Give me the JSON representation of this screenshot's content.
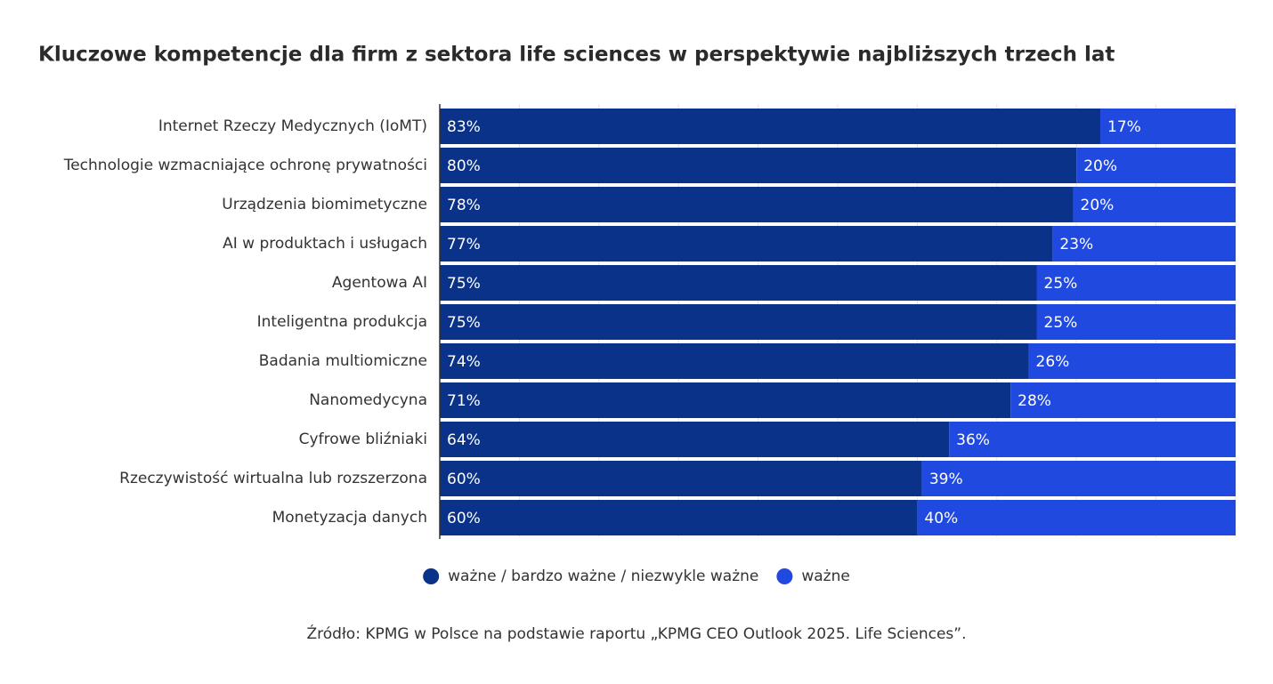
{
  "chart_data": {
    "type": "bar",
    "orientation": "horizontal",
    "stacking": "percent",
    "title": "Kluczowe kompetencje dla firm z sektora life sciences w perspektywie najbliższych trzech lat",
    "categories": [
      "Internet Rzeczy Medycznych (IoMT)",
      "Technologie wzmacniające ochronę prywatności",
      "Urządzenia biomimetyczne",
      "AI w produktach i usługach",
      "Agentowa AI",
      "Inteligentna produkcja",
      "Badania multiomiczne",
      "Nanomedycyna",
      "Cyfrowe bliźniaki",
      "Rzeczywistość wirtualna lub rozszerzona",
      "Monetyzacja danych"
    ],
    "series": [
      {
        "name": "ważne / bardzo ważne / niezwykle ważne",
        "color": "#0b3289",
        "values": [
          83,
          80,
          78,
          77,
          75,
          75,
          74,
          71,
          64,
          60,
          60
        ],
        "value_labels": [
          "83%",
          "80%",
          "78%",
          "77%",
          "75%",
          "75%",
          "74%",
          "71%",
          "64%",
          "60%",
          "60%"
        ]
      },
      {
        "name": "ważne",
        "color": "#2049e0",
        "values": [
          17,
          20,
          20,
          23,
          25,
          25,
          26,
          28,
          36,
          39,
          40
        ],
        "value_labels": [
          "17%",
          "20%",
          "20%",
          "23%",
          "25%",
          "25%",
          "26%",
          "28%",
          "36%",
          "39%",
          "40%"
        ]
      }
    ],
    "xlim": [
      0,
      100
    ],
    "xticks": [
      0,
      10,
      20,
      30,
      40,
      50,
      60,
      70,
      80,
      90,
      100
    ],
    "show_tick_labels": false,
    "grid": true,
    "legend": "bottom",
    "source": "Źródło: KPMG w Polsce na podstawie raportu „KPMG CEO Outlook 2025. Life Sciences”."
  }
}
